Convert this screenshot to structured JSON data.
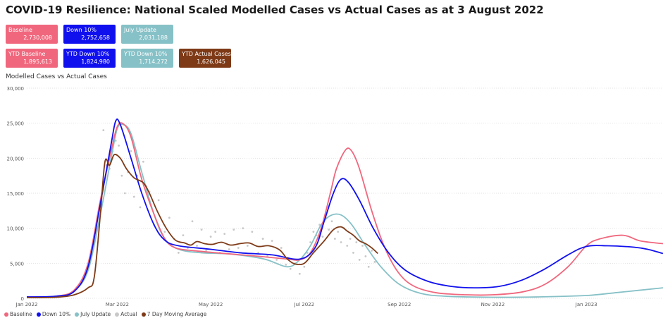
{
  "title": "COVID-19 Resilience:  National Scaled Modelled Cases vs Actual Cases as at 3 August 2022",
  "subtitle": "Modelled Cases vs Actual Cases",
  "cards_row1": [
    {
      "label": "Baseline",
      "value": "2,730,008",
      "color": "#f0677d"
    },
    {
      "label": "Down 10%",
      "value": "2,752,658",
      "color": "#1010ef"
    },
    {
      "label": "July Update",
      "value": "2,031,188",
      "color": "#86c1c7"
    }
  ],
  "cards_row2": [
    {
      "label": "YTD Baseline",
      "value": "1,895,613",
      "color": "#f0677d"
    },
    {
      "label": "YTD Down 10%",
      "value": "1,824,980",
      "color": "#1010ef"
    },
    {
      "label": "YTD Down 10%",
      "value": "1,714,272",
      "color": "#86c1c7"
    },
    {
      "label": "YTD Actual Cases",
      "value": "1,626,045",
      "color": "#7e3a17"
    }
  ],
  "legend": [
    {
      "label": "Baseline",
      "color": "#f0677d"
    },
    {
      "label": "Down 10%",
      "color": "#1010ef"
    },
    {
      "label": "July Update",
      "color": "#86c1c7"
    },
    {
      "label": "Actual",
      "color": "#c8c8c8"
    },
    {
      "label": "7 Day Moving Average",
      "color": "#7e3a17"
    }
  ],
  "chart_data": {
    "type": "line",
    "title": "Modelled Cases vs Actual Cases",
    "xlim": [
      "2022-01-01",
      "2023-02-20"
    ],
    "ylim": [
      0,
      30000
    ],
    "yticks": [
      0,
      5000,
      10000,
      15000,
      20000,
      25000,
      30000
    ],
    "ytick_labels": [
      "0",
      "5,000",
      "10,000",
      "15,000",
      "20,000",
      "25,000",
      "30,000"
    ],
    "xticks": [
      "2022-01-01",
      "2022-03-01",
      "2022-05-01",
      "2022-07-01",
      "2022-09-01",
      "2022-11-01",
      "2023-01-01"
    ],
    "xtick_labels": [
      "Jan 2022",
      "Mar 2022",
      "May 2022",
      "Jul 2022",
      "Sep 2022",
      "Nov 2022",
      "Jan 2023"
    ],
    "grid": "horizontal-dotted",
    "legend_position": "bottom-left",
    "series": [
      {
        "name": "Baseline",
        "color": "#f0677d",
        "style": "line",
        "points": [
          [
            "2022-01-01",
            200
          ],
          [
            "2022-01-20",
            300
          ],
          [
            "2022-02-01",
            1200
          ],
          [
            "2022-02-10",
            5000
          ],
          [
            "2022-02-18",
            14000
          ],
          [
            "2022-02-25",
            21000
          ],
          [
            "2022-03-01",
            24500
          ],
          [
            "2022-03-05",
            24900
          ],
          [
            "2022-03-10",
            23000
          ],
          [
            "2022-03-17",
            17000
          ],
          [
            "2022-03-25",
            12000
          ],
          [
            "2022-04-01",
            8500
          ],
          [
            "2022-04-08",
            7200
          ],
          [
            "2022-04-20",
            6800
          ],
          [
            "2022-05-10",
            6400
          ],
          [
            "2022-06-01",
            6000
          ],
          [
            "2022-06-20",
            5600
          ],
          [
            "2022-06-28",
            5500
          ],
          [
            "2022-07-05",
            6500
          ],
          [
            "2022-07-12",
            10000
          ],
          [
            "2022-07-18",
            15000
          ],
          [
            "2022-07-22",
            18500
          ],
          [
            "2022-07-28",
            21200
          ],
          [
            "2022-08-01",
            21000
          ],
          [
            "2022-08-06",
            18500
          ],
          [
            "2022-08-14",
            12500
          ],
          [
            "2022-08-22",
            7500
          ],
          [
            "2022-08-31",
            3800
          ],
          [
            "2022-09-10",
            1800
          ],
          [
            "2022-09-25",
            800
          ],
          [
            "2022-10-15",
            500
          ],
          [
            "2022-11-01",
            500
          ],
          [
            "2022-11-20",
            900
          ],
          [
            "2022-12-05",
            2000
          ],
          [
            "2022-12-20",
            4500
          ],
          [
            "2023-01-01",
            7500
          ],
          [
            "2023-01-10",
            8500
          ],
          [
            "2023-01-25",
            9000
          ],
          [
            "2023-02-05",
            8200
          ],
          [
            "2023-02-20",
            7800
          ]
        ]
      },
      {
        "name": "Down 10%",
        "color": "#1010ef",
        "style": "line",
        "points": [
          [
            "2022-01-01",
            200
          ],
          [
            "2022-01-20",
            300
          ],
          [
            "2022-02-01",
            1000
          ],
          [
            "2022-02-10",
            4500
          ],
          [
            "2022-02-18",
            13500
          ],
          [
            "2022-02-25",
            22000
          ],
          [
            "2022-02-28",
            25300
          ],
          [
            "2022-03-03",
            24800
          ],
          [
            "2022-03-10",
            20000
          ],
          [
            "2022-03-17",
            15000
          ],
          [
            "2022-03-25",
            10500
          ],
          [
            "2022-04-01",
            8300
          ],
          [
            "2022-04-10",
            7500
          ],
          [
            "2022-05-01",
            7000
          ],
          [
            "2022-05-20",
            6500
          ],
          [
            "2022-06-10",
            6200
          ],
          [
            "2022-06-28",
            5600
          ],
          [
            "2022-07-08",
            7200
          ],
          [
            "2022-07-14",
            11000
          ],
          [
            "2022-07-20",
            15000
          ],
          [
            "2022-07-25",
            17000
          ],
          [
            "2022-07-30",
            16500
          ],
          [
            "2022-08-06",
            14000
          ],
          [
            "2022-08-15",
            10000
          ],
          [
            "2022-08-25",
            6500
          ],
          [
            "2022-09-05",
            4000
          ],
          [
            "2022-09-20",
            2400
          ],
          [
            "2022-10-05",
            1700
          ],
          [
            "2022-10-20",
            1500
          ],
          [
            "2022-11-05",
            1700
          ],
          [
            "2022-11-20",
            2600
          ],
          [
            "2022-12-05",
            4200
          ],
          [
            "2022-12-20",
            6200
          ],
          [
            "2023-01-01",
            7400
          ],
          [
            "2023-01-15",
            7500
          ],
          [
            "2023-02-01",
            7300
          ],
          [
            "2023-02-10",
            7000
          ],
          [
            "2023-02-20",
            6400
          ]
        ]
      },
      {
        "name": "July Update",
        "color": "#86c1c7",
        "style": "line",
        "points": [
          [
            "2022-01-01",
            200
          ],
          [
            "2022-01-20",
            300
          ],
          [
            "2022-02-01",
            1100
          ],
          [
            "2022-02-10",
            4000
          ],
          [
            "2022-02-18",
            12000
          ],
          [
            "2022-02-25",
            20000
          ],
          [
            "2022-03-01",
            24200
          ],
          [
            "2022-03-05",
            24800
          ],
          [
            "2022-03-10",
            23500
          ],
          [
            "2022-03-17",
            18000
          ],
          [
            "2022-03-25",
            12000
          ],
          [
            "2022-04-01",
            8500
          ],
          [
            "2022-04-10",
            7000
          ],
          [
            "2022-04-25",
            6500
          ],
          [
            "2022-05-15",
            6300
          ],
          [
            "2022-06-05",
            5600
          ],
          [
            "2022-06-20",
            4500
          ],
          [
            "2022-06-28",
            5500
          ],
          [
            "2022-07-05",
            7500
          ],
          [
            "2022-07-12",
            10500
          ],
          [
            "2022-07-18",
            11800
          ],
          [
            "2022-07-25",
            11900
          ],
          [
            "2022-08-01",
            10500
          ],
          [
            "2022-08-10",
            7500
          ],
          [
            "2022-08-20",
            4500
          ],
          [
            "2022-09-01",
            2000
          ],
          [
            "2022-09-15",
            700
          ],
          [
            "2022-10-01",
            300
          ],
          [
            "2022-11-01",
            150
          ],
          [
            "2022-12-01",
            200
          ],
          [
            "2023-01-01",
            400
          ],
          [
            "2023-01-20",
            800
          ],
          [
            "2023-02-20",
            1500
          ]
        ]
      },
      {
        "name": "7 Day Moving Average",
        "color": "#7e3a17",
        "style": "line",
        "points": [
          [
            "2022-01-01",
            100
          ],
          [
            "2022-01-20",
            150
          ],
          [
            "2022-02-01",
            500
          ],
          [
            "2022-02-10",
            1500
          ],
          [
            "2022-02-14",
            3000
          ],
          [
            "2022-02-18",
            12000
          ],
          [
            "2022-02-21",
            19500
          ],
          [
            "2022-02-24",
            19000
          ],
          [
            "2022-02-27",
            20500
          ],
          [
            "2022-03-03",
            20000
          ],
          [
            "2022-03-07",
            18500
          ],
          [
            "2022-03-12",
            17200
          ],
          [
            "2022-03-18",
            16500
          ],
          [
            "2022-03-22",
            15000
          ],
          [
            "2022-03-27",
            12500
          ],
          [
            "2022-04-02",
            10000
          ],
          [
            "2022-04-08",
            8300
          ],
          [
            "2022-04-14",
            7900
          ],
          [
            "2022-04-18",
            7600
          ],
          [
            "2022-04-22",
            8100
          ],
          [
            "2022-04-27",
            7800
          ],
          [
            "2022-05-02",
            7700
          ],
          [
            "2022-05-08",
            8000
          ],
          [
            "2022-05-14",
            7600
          ],
          [
            "2022-05-20",
            7800
          ],
          [
            "2022-05-26",
            7900
          ],
          [
            "2022-06-01",
            7400
          ],
          [
            "2022-06-08",
            7500
          ],
          [
            "2022-06-15",
            6900
          ],
          [
            "2022-06-20",
            5600
          ],
          [
            "2022-06-25",
            4900
          ],
          [
            "2022-07-01",
            5000
          ],
          [
            "2022-07-07",
            6500
          ],
          [
            "2022-07-14",
            8200
          ],
          [
            "2022-07-20",
            9800
          ],
          [
            "2022-07-25",
            10200
          ],
          [
            "2022-07-29",
            9600
          ],
          [
            "2022-08-02",
            9000
          ],
          [
            "2022-08-06",
            8200
          ],
          [
            "2022-08-10",
            7800
          ],
          [
            "2022-08-14",
            7200
          ],
          [
            "2022-08-18",
            6400
          ]
        ]
      },
      {
        "name": "Actual",
        "color": "#c8c8c8",
        "style": "scatter",
        "points": [
          [
            "2022-02-18",
            12500
          ],
          [
            "2022-02-20",
            24000
          ],
          [
            "2022-02-22",
            19000
          ],
          [
            "2022-02-24",
            18500
          ],
          [
            "2022-02-26",
            21000
          ],
          [
            "2022-02-28",
            22500
          ],
          [
            "2022-03-02",
            21800
          ],
          [
            "2022-03-04",
            17500
          ],
          [
            "2022-03-06",
            15000
          ],
          [
            "2022-03-08",
            18000
          ],
          [
            "2022-03-10",
            21000
          ],
          [
            "2022-03-12",
            14500
          ],
          [
            "2022-03-14",
            17500
          ],
          [
            "2022-03-16",
            13000
          ],
          [
            "2022-03-18",
            19500
          ],
          [
            "2022-03-20",
            16000
          ],
          [
            "2022-03-22",
            15200
          ],
          [
            "2022-03-25",
            10500
          ],
          [
            "2022-03-28",
            14000
          ],
          [
            "2022-04-01",
            9500
          ],
          [
            "2022-04-04",
            11500
          ],
          [
            "2022-04-07",
            8500
          ],
          [
            "2022-04-10",
            6500
          ],
          [
            "2022-04-13",
            9000
          ],
          [
            "2022-04-16",
            7200
          ],
          [
            "2022-04-19",
            11000
          ],
          [
            "2022-04-22",
            7500
          ],
          [
            "2022-04-25",
            9800
          ],
          [
            "2022-04-28",
            6800
          ],
          [
            "2022-05-01",
            8800
          ],
          [
            "2022-05-04",
            9500
          ],
          [
            "2022-05-07",
            6500
          ],
          [
            "2022-05-10",
            9200
          ],
          [
            "2022-05-13",
            7000
          ],
          [
            "2022-05-16",
            9800
          ],
          [
            "2022-05-19",
            7200
          ],
          [
            "2022-05-22",
            10000
          ],
          [
            "2022-05-25",
            7500
          ],
          [
            "2022-05-28",
            9500
          ],
          [
            "2022-06-01",
            6500
          ],
          [
            "2022-06-04",
            8500
          ],
          [
            "2022-06-07",
            6000
          ],
          [
            "2022-06-10",
            8200
          ],
          [
            "2022-06-13",
            5500
          ],
          [
            "2022-06-16",
            7200
          ],
          [
            "2022-06-19",
            4800
          ],
          [
            "2022-06-22",
            4200
          ],
          [
            "2022-06-25",
            5000
          ],
          [
            "2022-06-28",
            3500
          ],
          [
            "2022-07-01",
            4500
          ],
          [
            "2022-07-03",
            6500
          ],
          [
            "2022-07-05",
            8000
          ],
          [
            "2022-07-07",
            9500
          ],
          [
            "2022-07-09",
            9000
          ],
          [
            "2022-07-11",
            10500
          ],
          [
            "2022-07-13",
            8800
          ],
          [
            "2022-07-15",
            11500
          ],
          [
            "2022-07-17",
            9800
          ],
          [
            "2022-07-19",
            11000
          ],
          [
            "2022-07-21",
            8500
          ],
          [
            "2022-07-23",
            9500
          ],
          [
            "2022-07-25",
            8000
          ],
          [
            "2022-07-27",
            10000
          ],
          [
            "2022-07-29",
            7500
          ],
          [
            "2022-07-31",
            8500
          ],
          [
            "2022-08-02",
            6500
          ],
          [
            "2022-08-04",
            8000
          ],
          [
            "2022-08-06",
            5500
          ],
          [
            "2022-08-08",
            7500
          ],
          [
            "2022-08-10",
            6000
          ],
          [
            "2022-08-12",
            4500
          ],
          [
            "2022-08-14",
            6800
          ],
          [
            "2022-08-16",
            5200
          ]
        ]
      }
    ]
  }
}
